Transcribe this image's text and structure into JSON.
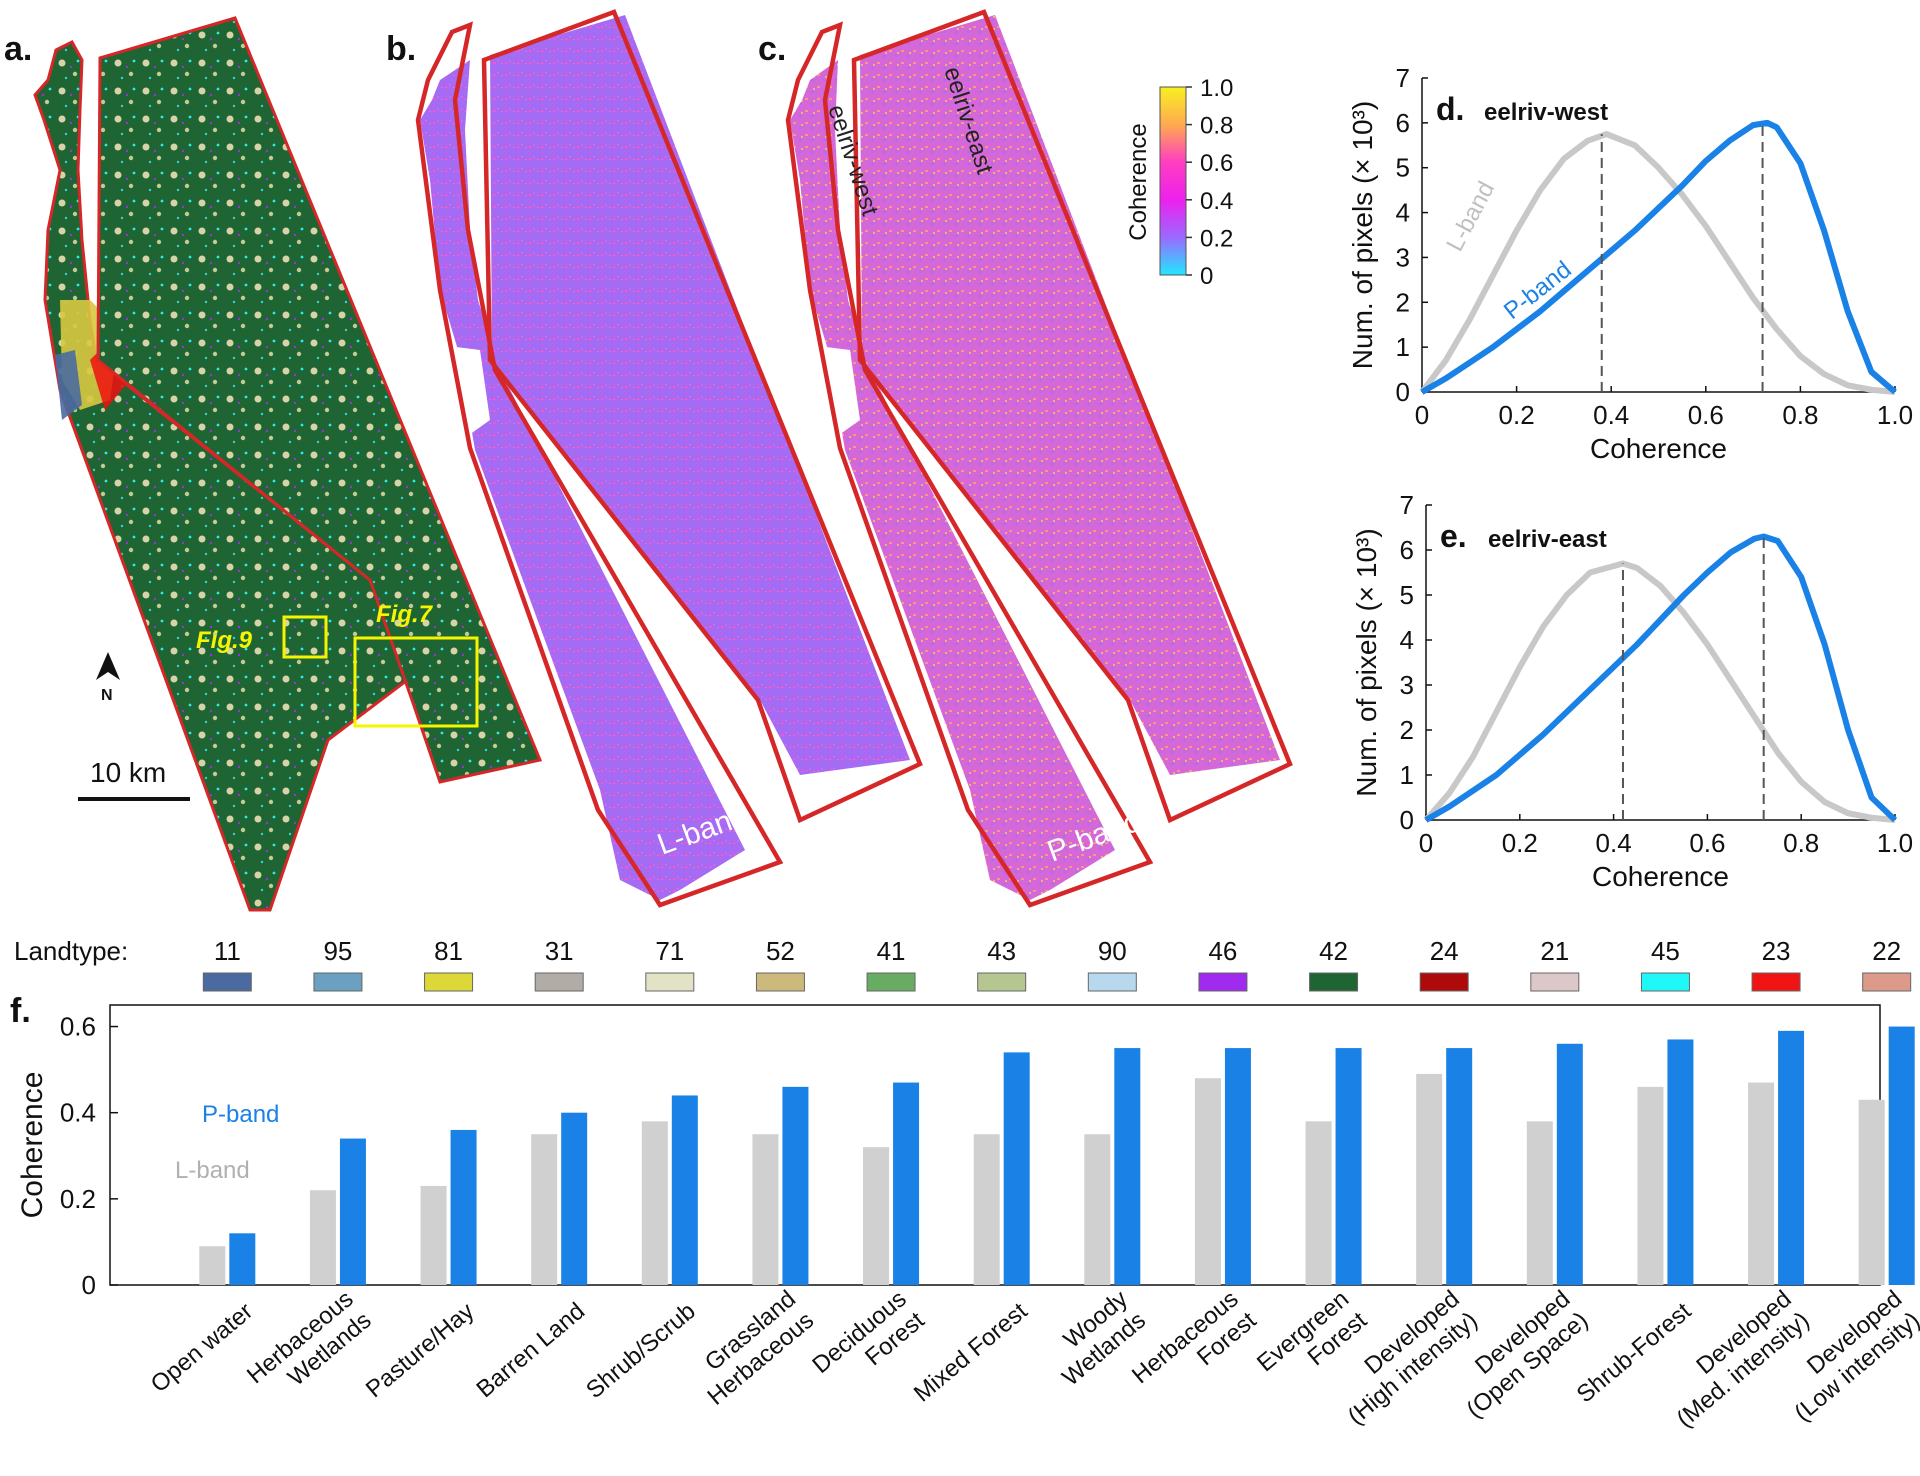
{
  "panel_labels": {
    "a": "a.",
    "b": "b.",
    "c": "c.",
    "d": "d.",
    "e": "e.",
    "f": "f."
  },
  "map_a": {
    "north_label": "N",
    "scale_label": "10 km",
    "fig9_label": "Fig.9",
    "fig7_label": "Fig.7",
    "colors": {
      "forest": "#1e6533",
      "shrub": "#d8d3a8",
      "water": "#2ee8ee",
      "developed": "#ee1111",
      "pasture": "#d8c840",
      "water_open": "#4a6aa0",
      "outline": "#d62728",
      "highlight": "#f5f500"
    }
  },
  "map_b": {
    "band_label": "L-band"
  },
  "map_c": {
    "band_label": "P-band",
    "strip_west_label": "eelriv-west",
    "strip_east_label": "eelriv-east"
  },
  "colorbar": {
    "label": "Coherence",
    "ticks": [
      "1.0",
      "0.8",
      "0.6",
      "0.4",
      "0.2",
      "0"
    ],
    "colors": [
      "#f8f020",
      "#ffaa50",
      "#ff3ec0",
      "#ee20ee",
      "#9a6aff",
      "#20e8ff"
    ]
  },
  "chart_data": [
    {
      "type": "line",
      "panel": "d",
      "title": "eelriv-west",
      "xlabel": "Coherence",
      "ylabel": "Num. of pixels (× 10³)",
      "xlim": [
        0,
        1.0
      ],
      "ylim": [
        0,
        7
      ],
      "xticks": [
        "0",
        "0.2",
        "0.4",
        "0.6",
        "0.8",
        "1.0"
      ],
      "yticks": [
        "0",
        "1",
        "2",
        "3",
        "4",
        "5",
        "6",
        "7"
      ],
      "series": [
        {
          "name": "L-band",
          "color": "#c8c8c8",
          "x": [
            0,
            0.05,
            0.1,
            0.15,
            0.2,
            0.25,
            0.3,
            0.35,
            0.39,
            0.45,
            0.5,
            0.55,
            0.6,
            0.65,
            0.7,
            0.75,
            0.8,
            0.85,
            0.9,
            0.95,
            1.0
          ],
          "y": [
            0,
            0.7,
            1.6,
            2.6,
            3.6,
            4.5,
            5.2,
            5.6,
            5.75,
            5.5,
            5.0,
            4.4,
            3.7,
            2.9,
            2.1,
            1.4,
            0.8,
            0.4,
            0.15,
            0.05,
            0
          ]
        },
        {
          "name": "P-band",
          "color": "#1a82e6",
          "x": [
            0,
            0.05,
            0.1,
            0.15,
            0.2,
            0.25,
            0.3,
            0.35,
            0.4,
            0.45,
            0.5,
            0.55,
            0.6,
            0.65,
            0.7,
            0.73,
            0.75,
            0.8,
            0.85,
            0.9,
            0.95,
            1.0
          ],
          "y": [
            0,
            0.3,
            0.65,
            1.0,
            1.4,
            1.8,
            2.25,
            2.7,
            3.15,
            3.6,
            4.1,
            4.6,
            5.15,
            5.6,
            5.95,
            6.0,
            5.9,
            5.1,
            3.6,
            1.8,
            0.45,
            0
          ]
        }
      ],
      "dashed_lines_x": [
        0.38,
        0.72
      ],
      "series_labels": [
        "L-band",
        "P-band"
      ]
    },
    {
      "type": "line",
      "panel": "e",
      "title": "eelriv-east",
      "xlabel": "Coherence",
      "ylabel": "Num. of pixels (× 10³)",
      "xlim": [
        0,
        1.0
      ],
      "ylim": [
        0,
        7
      ],
      "xticks": [
        "0",
        "0.2",
        "0.4",
        "0.6",
        "0.8",
        "1.0"
      ],
      "yticks": [
        "0",
        "1",
        "2",
        "3",
        "4",
        "5",
        "6",
        "7"
      ],
      "series": [
        {
          "name": "L-band",
          "color": "#c8c8c8",
          "x": [
            0,
            0.05,
            0.1,
            0.15,
            0.2,
            0.25,
            0.3,
            0.35,
            0.42,
            0.45,
            0.5,
            0.55,
            0.6,
            0.65,
            0.7,
            0.75,
            0.8,
            0.85,
            0.9,
            0.95,
            1.0
          ],
          "y": [
            0,
            0.6,
            1.4,
            2.4,
            3.4,
            4.3,
            5.0,
            5.5,
            5.7,
            5.6,
            5.2,
            4.6,
            3.9,
            3.1,
            2.3,
            1.5,
            0.85,
            0.4,
            0.15,
            0.05,
            0
          ]
        },
        {
          "name": "P-band",
          "color": "#1a82e6",
          "x": [
            0,
            0.05,
            0.1,
            0.15,
            0.2,
            0.25,
            0.3,
            0.35,
            0.4,
            0.45,
            0.5,
            0.55,
            0.6,
            0.65,
            0.7,
            0.72,
            0.75,
            0.8,
            0.85,
            0.9,
            0.95,
            1.0
          ],
          "y": [
            0,
            0.3,
            0.65,
            1.0,
            1.45,
            1.9,
            2.4,
            2.9,
            3.4,
            3.9,
            4.45,
            5.0,
            5.5,
            5.95,
            6.25,
            6.3,
            6.2,
            5.4,
            3.9,
            2.0,
            0.5,
            0
          ]
        }
      ],
      "dashed_lines_x": [
        0.42,
        0.72
      ],
      "series_labels": []
    },
    {
      "type": "bar",
      "panel": "f",
      "ylabel": "Coherence",
      "ylim": [
        0,
        0.65
      ],
      "yticks": [
        "0",
        "0.2",
        "0.4",
        "0.6"
      ],
      "landtype_label": "Landtype:",
      "landtype_codes": [
        "11",
        "95",
        "81",
        "31",
        "71",
        "52",
        "41",
        "43",
        "90",
        "46",
        "42",
        "24",
        "21",
        "45",
        "23",
        "22"
      ],
      "landtype_colors": [
        "#4a6aa0",
        "#6aa0c0",
        "#dcd83a",
        "#b2aca6",
        "#e2e2c6",
        "#ccba7c",
        "#68ab62",
        "#b6c690",
        "#b8d8ee",
        "#a02aee",
        "#1e6533",
        "#ae0a0a",
        "#dcc8c8",
        "#20f8f8",
        "#f01414",
        "#dc9a8a"
      ],
      "categories": [
        [
          "Open water"
        ],
        [
          "Herbaceous",
          "Wetlands"
        ],
        [
          "Pasture/Hay"
        ],
        [
          "Barren Land"
        ],
        [
          "Shrub/Scrub"
        ],
        [
          "Grassland",
          "Herbaceous"
        ],
        [
          "Deciduous",
          "Forest"
        ],
        [
          "Mixed Forest"
        ],
        [
          "Woody",
          "Wetlands"
        ],
        [
          "Herbaceous",
          "Forest"
        ],
        [
          "Evergreen",
          "Forest"
        ],
        [
          "Developed",
          "(High intensity)"
        ],
        [
          "Developed",
          "(Open Space)"
        ],
        [
          "Shrub-Forest"
        ],
        [
          "Developed",
          "(Med. intensity)"
        ],
        [
          "Developed",
          "(Low intensity)"
        ]
      ],
      "series": [
        {
          "name": "L-band",
          "color": "#d0d0d0",
          "values": [
            0.09,
            0.22,
            0.23,
            0.35,
            0.38,
            0.35,
            0.32,
            0.35,
            0.35,
            0.48,
            0.38,
            0.49,
            0.38,
            0.46,
            0.47,
            0.43
          ]
        },
        {
          "name": "P-band",
          "color": "#1a82e6",
          "values": [
            0.12,
            0.34,
            0.36,
            0.4,
            0.44,
            0.46,
            0.47,
            0.54,
            0.55,
            0.55,
            0.55,
            0.55,
            0.56,
            0.57,
            0.59,
            0.6
          ]
        }
      ],
      "series_labels": [
        "P-band",
        "L-band"
      ]
    }
  ]
}
